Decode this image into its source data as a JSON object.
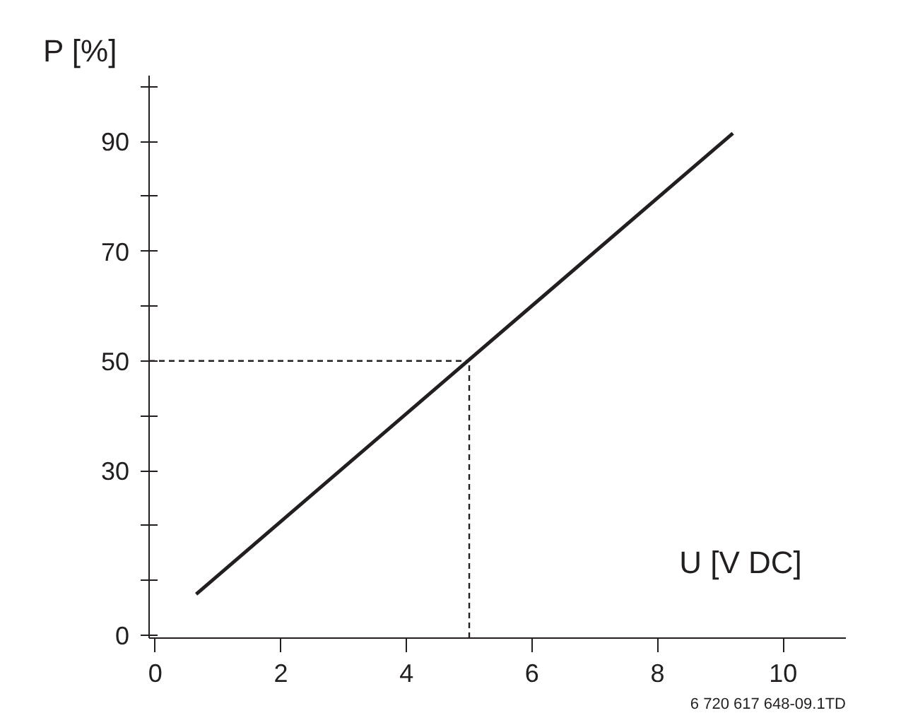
{
  "chart_data": {
    "type": "line",
    "xlabel": "U [V DC]",
    "ylabel": "P [%]",
    "x": [
      0.65,
      9.2
    ],
    "values": [
      7.5,
      91.5
    ],
    "color": "#231f20",
    "xlim": [
      -0.1,
      11
    ],
    "ylim": [
      -0.5,
      102
    ],
    "xticks": [
      0,
      2,
      4,
      6,
      8,
      10
    ],
    "yticks": [
      0,
      {
        "value": 10,
        "label": null
      },
      {
        "value": 20,
        "label": null
      },
      30,
      {
        "value": 40,
        "label": null
      },
      50,
      {
        "value": 60,
        "label": null
      },
      70,
      {
        "value": 80,
        "label": null
      },
      90,
      {
        "value": 100,
        "label": null
      }
    ],
    "ref_lines": [
      {
        "axis": "y",
        "value": 50,
        "line_style": "dashed",
        "color": "#231f20"
      },
      {
        "axis": "x",
        "value": 5,
        "line_style": "dashed",
        "color": "#231f20"
      }
    ],
    "annotations": [
      "6 720 617 648-09.1TD"
    ],
    "grid": false,
    "marker": "none",
    "line_style": "solid"
  }
}
